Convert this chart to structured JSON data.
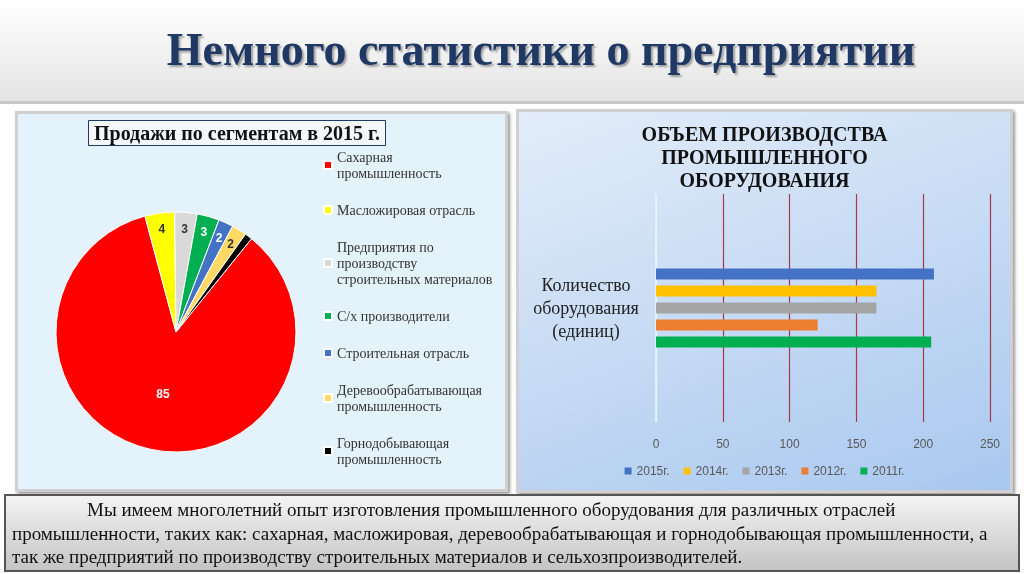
{
  "chart_data": [
    {
      "type": "other",
      "title": "Немного статистики о предприятии"
    },
    {
      "type": "pie",
      "title": "Продажи по сегментам в 2015 г.",
      "categories": [
        "Сахарная промышленность",
        "Масложировая отрасль",
        "Предприятия по производству строительных материалов",
        "С/х производители",
        "Строительная отрасль",
        "Деревообрабатывающая промышленность",
        "Горнодобывающая промышленность"
      ],
      "values": [
        85,
        4,
        3,
        3,
        2,
        2,
        1
      ],
      "colors": [
        "#ff0000",
        "#ffff00",
        "#d9d9d9",
        "#00b050",
        "#4472c4",
        "#ffd966",
        "#000000"
      ],
      "value_labels": [
        "85",
        "4",
        "3",
        "3",
        "2",
        "2",
        null
      ],
      "legend": "right"
    },
    {
      "type": "bar",
      "orientation": "horizontal",
      "title": "ОБЪЕМ ПРОИЗВОДСТВА ПРОМЫШЛЕННОГО ОБОРУДОВАНИЯ",
      "categories": [
        "Количество оборудования (единиц)"
      ],
      "series": [
        {
          "name": "2015г.",
          "color": "#4472c4",
          "values": [
            208
          ]
        },
        {
          "name": "2014г.",
          "color": "#ffc000",
          "values": [
            165
          ]
        },
        {
          "name": "2013г.",
          "color": "#a5a5a5",
          "values": [
            165
          ]
        },
        {
          "name": "2012г.",
          "color": "#ed7d31",
          "values": [
            121
          ]
        },
        {
          "name": "2011г.",
          "color": "#00b050",
          "values": [
            206
          ]
        }
      ],
      "xlim": [
        0,
        250
      ],
      "xticks": [
        0,
        50,
        100,
        150,
        200,
        250
      ],
      "grid": "x",
      "legend": "bottom"
    },
    {
      "type": "other",
      "annotations": [
        "Мы имеем многолетний опыт изготовления промышленного оборудования для различных отраслей промышленности, таких как: сахарная, масложировая, деревообрабатывающая и горнодобывающая промышленности, а так же предприятий по производству строительных материалов и сельхозпроизводителей."
      ]
    }
  ]
}
